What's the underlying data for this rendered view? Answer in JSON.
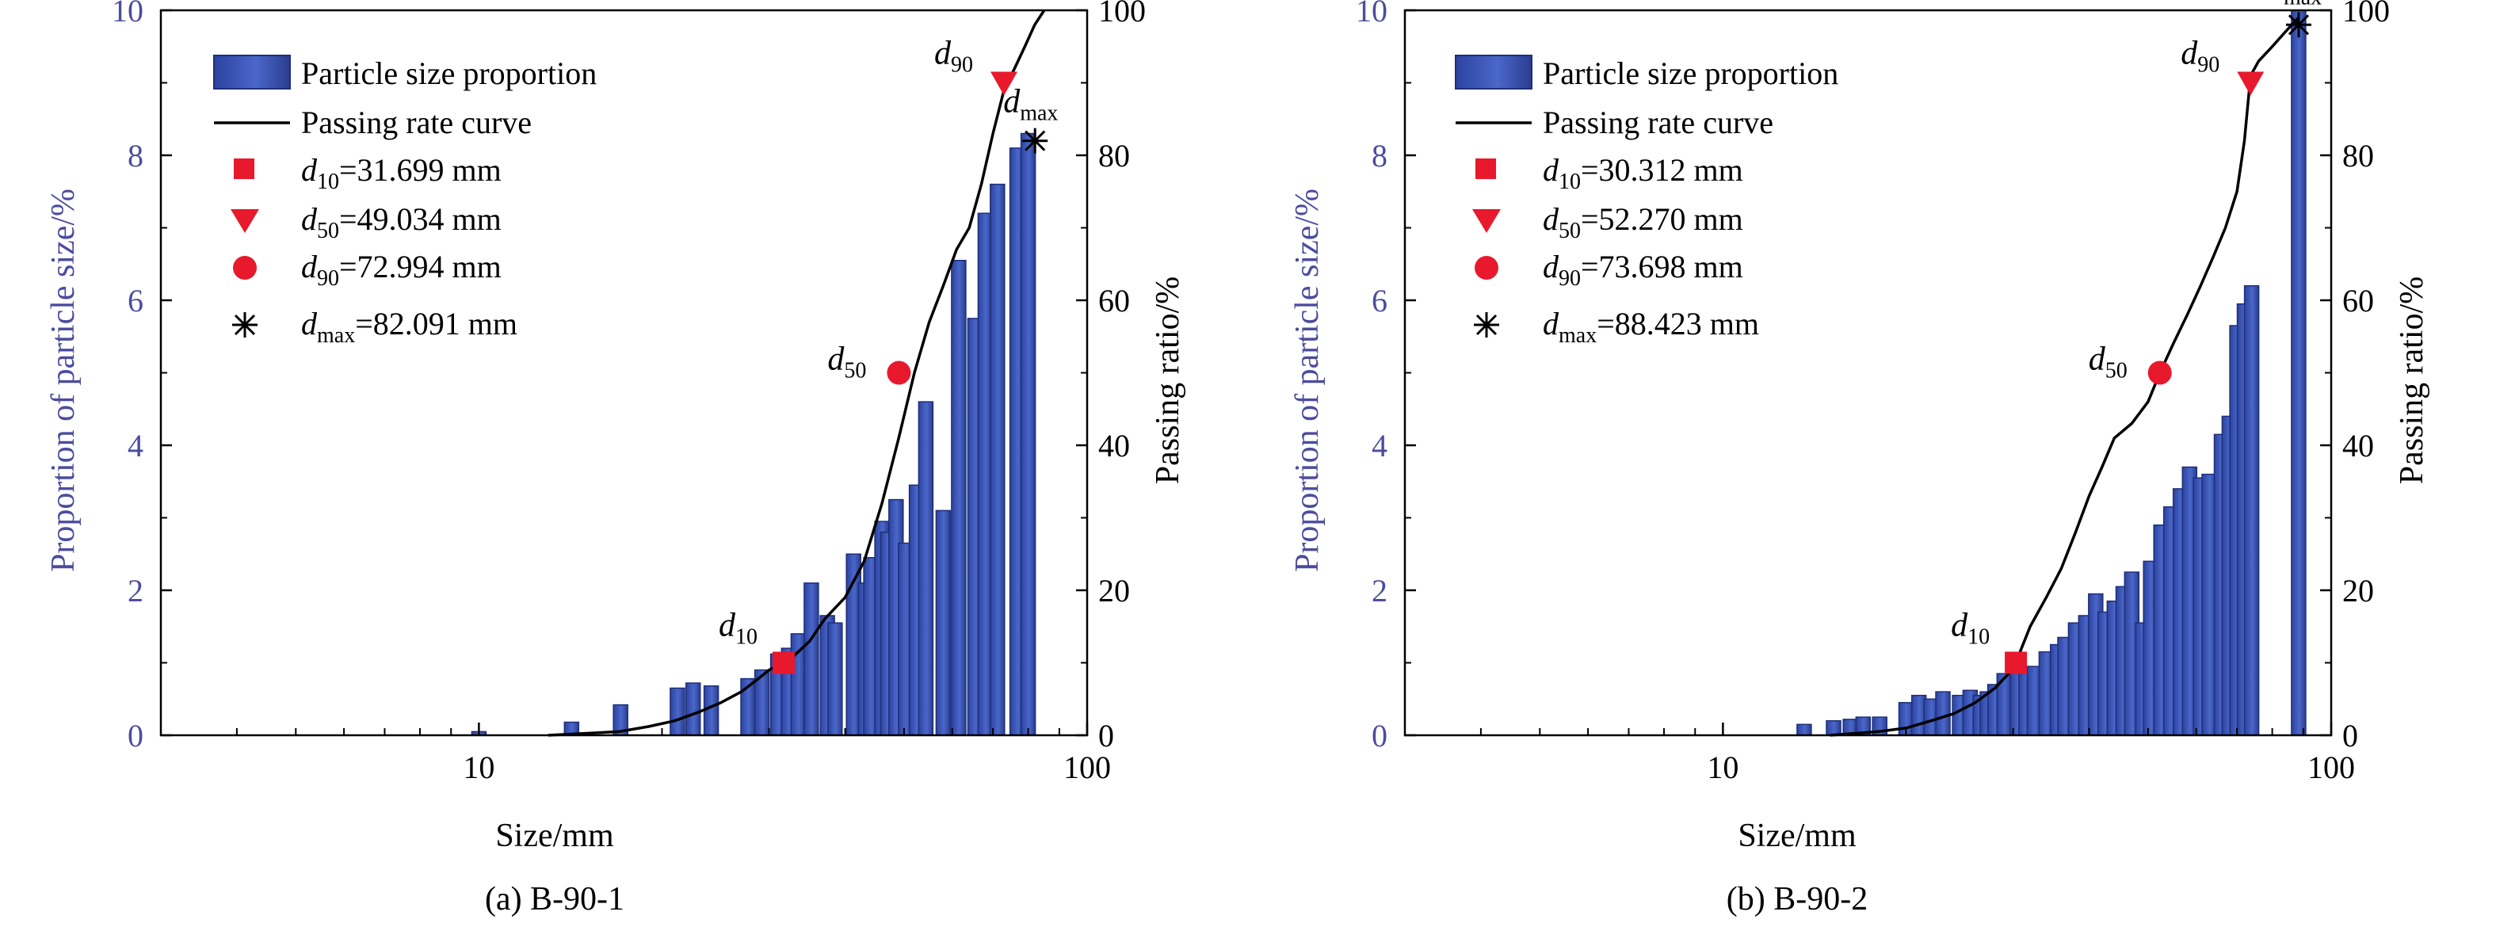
{
  "chart_data": [
    {
      "type": "bar",
      "caption": "(a) B-90-1",
      "xlabel": "Size/mm",
      "ylabel": "Proportion of particle size/%",
      "y2label": "Passing ratio/%",
      "xscale": "log",
      "xlim": [
        3,
        100
      ],
      "xticks": [
        "10",
        "100"
      ],
      "ylim": [
        0,
        10
      ],
      "yticks": [
        "0",
        "2",
        "4",
        "6",
        "8",
        "10"
      ],
      "y2lim": [
        0,
        100
      ],
      "y2ticks": [
        "0",
        "20",
        "40",
        "60",
        "80",
        "100"
      ],
      "grid": false,
      "legend_position": "top-left",
      "legend": {
        "bars": "Particle size proportion",
        "curve": "Passing rate curve",
        "d10": "d10=31.699 mm",
        "d50": "d50=49.034 mm",
        "d90": "d90=72.994 mm",
        "dmax": "dmax=82.091 mm"
      },
      "bars": {
        "x": [
          10,
          14.2,
          17.1,
          21.2,
          22.5,
          24.1,
          27.7,
          29.2,
          31.0,
          32.3,
          33.5,
          35.2,
          37.4,
          38.5,
          41.3,
          43.2,
          44.1,
          46.0,
          47.0,
          48.5,
          50.3,
          52.4,
          54.3,
          58.0,
          61.5,
          65.4,
          68.0,
          71.2,
          76.7,
          80.0
        ],
        "values": [
          0.05,
          0.18,
          0.42,
          0.65,
          0.72,
          0.68,
          0.78,
          0.9,
          1.12,
          1.2,
          1.4,
          2.1,
          1.65,
          1.55,
          2.5,
          2.1,
          2.45,
          2.95,
          2.8,
          3.25,
          2.65,
          3.45,
          4.6,
          3.1,
          6.55,
          5.75,
          7.2,
          7.6,
          8.1,
          8.3
        ]
      },
      "curve": {
        "x": [
          13,
          17,
          19,
          21,
          23,
          25,
          27,
          28.5,
          30,
          31.7,
          33,
          35,
          37,
          40,
          43,
          46,
          49,
          52,
          55,
          58,
          61,
          64,
          67,
          70,
          73,
          76,
          79,
          82,
          85
        ],
        "y": [
          0,
          0.5,
          1.2,
          2.0,
          3.2,
          4.5,
          6,
          7.5,
          9,
          10,
          11,
          13,
          16,
          19,
          24,
          32,
          41,
          50,
          57,
          62,
          67,
          70,
          76,
          83,
          89,
          92,
          95,
          98,
          100
        ]
      },
      "markers": {
        "d10": {
          "x": 31.699,
          "y": 10,
          "label_main": "d",
          "label_sub": "10"
        },
        "d50": {
          "x": 49.034,
          "y": 50,
          "label_main": "d",
          "label_sub": "50"
        },
        "d90": {
          "x": 72.994,
          "y": 90,
          "label_main": "d",
          "label_sub": "90"
        },
        "dmax": {
          "x": 82.091,
          "y": 82,
          "label_main": "d",
          "label_sub": "max"
        }
      }
    },
    {
      "type": "bar",
      "caption": "(b) B-90-2",
      "xlabel": "Size/mm",
      "ylabel": "Proportion of particle size/%",
      "y2label": "Passing ratio/%",
      "xscale": "log",
      "xlim": [
        3,
        100
      ],
      "xticks": [
        "10",
        "100"
      ],
      "ylim": [
        0,
        10
      ],
      "yticks": [
        "0",
        "2",
        "4",
        "6",
        "8",
        "10"
      ],
      "y2lim": [
        0,
        100
      ],
      "y2ticks": [
        "0",
        "20",
        "40",
        "60",
        "80",
        "100"
      ],
      "grid": false,
      "legend_position": "top-left",
      "legend": {
        "bars": "Particle size proportion",
        "curve": "Passing rate curve",
        "d10": "d10=30.312 mm",
        "d50": "d50=52.270 mm",
        "d90": "d90=73.698 mm",
        "dmax": "dmax=88.423 mm"
      },
      "bars": {
        "x": [
          13.6,
          15.2,
          16.2,
          17.0,
          18.1,
          20.0,
          21.0,
          22.0,
          23.0,
          24.5,
          25.5,
          26.5,
          27.2,
          28.0,
          29.0,
          30.5,
          31.5,
          32.5,
          34.0,
          35.5,
          36.5,
          38.0,
          39.5,
          41.0,
          42.5,
          44.0,
          45.5,
          47.0,
          49.0,
          50.5,
          52.5,
          54.5,
          56.5,
          58.5,
          61.0,
          63.0,
          66.0,
          68.0,
          70.0,
          72.0,
          74.0,
          88.4
        ],
        "values": [
          0.15,
          0.2,
          0.22,
          0.25,
          0.25,
          0.45,
          0.55,
          0.5,
          0.6,
          0.55,
          0.62,
          0.55,
          0.6,
          0.7,
          0.85,
          1.05,
          0.92,
          0.95,
          1.15,
          1.25,
          1.35,
          1.55,
          1.65,
          1.95,
          1.7,
          1.85,
          2.05,
          2.25,
          1.55,
          2.4,
          2.9,
          3.15,
          3.4,
          3.7,
          3.55,
          3.6,
          4.15,
          4.4,
          5.65,
          5.95,
          6.2,
          10
        ]
      },
      "curve": {
        "x": [
          15,
          18,
          20,
          22,
          24,
          26,
          28,
          29.5,
          30.3,
          32,
          34,
          36,
          38,
          40,
          42,
          44,
          47,
          50,
          52.3,
          55,
          58,
          61,
          64,
          67,
          70,
          72,
          73.7,
          76,
          80,
          84,
          88.4
        ],
        "y": [
          0,
          0.5,
          1,
          2,
          3,
          4.5,
          6.5,
          8.5,
          10,
          15,
          19,
          23,
          28,
          33,
          37,
          41,
          43,
          46,
          50,
          54,
          58,
          62,
          66,
          70,
          75,
          82,
          91,
          93,
          95,
          97,
          99
        ]
      },
      "markers": {
        "d10": {
          "x": 30.312,
          "y": 10,
          "label_main": "d",
          "label_sub": "10"
        },
        "d50": {
          "x": 52.27,
          "y": 50,
          "label_main": "d",
          "label_sub": "50"
        },
        "d90": {
          "x": 73.698,
          "y": 90,
          "label_main": "d",
          "label_sub": "90"
        },
        "dmax": {
          "x": 88.423,
          "y": 98,
          "label_main": "d",
          "label_sub": "max"
        }
      }
    }
  ],
  "colors": {
    "bar_fill": "#3d57b8",
    "bar_stroke": "#1e2f7a",
    "curve": "#000000",
    "marker_red": "#e8192c",
    "left_axis": "#4c4c9e"
  }
}
